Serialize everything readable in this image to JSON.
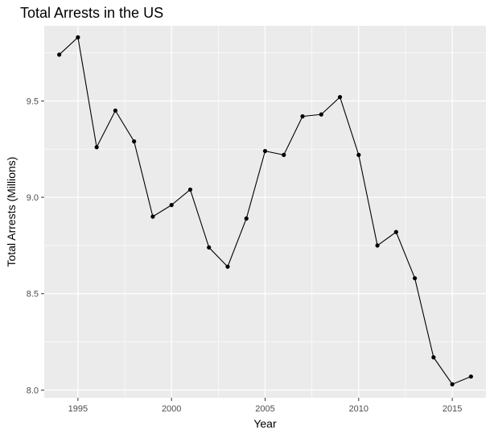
{
  "chart_data": {
    "type": "line",
    "title": "Total Arrests in the US",
    "xlabel": "Year",
    "ylabel": "Total Arrests (Millions)",
    "xlim": [
      1993.2,
      2016.8
    ],
    "ylim": [
      7.96,
      9.89
    ],
    "x_ticks": [
      1995,
      2000,
      2005,
      2010,
      2015
    ],
    "y_ticks": [
      8.0,
      8.5,
      9.0,
      9.5
    ],
    "x_tick_labels": [
      "1995",
      "2000",
      "2005",
      "2010",
      "2015"
    ],
    "y_tick_labels": [
      "8.0",
      "8.5",
      "9.0",
      "9.5"
    ],
    "grid": true,
    "legend": false,
    "series": [
      {
        "x": [
          1994,
          1995,
          1996,
          1997,
          1998,
          1999,
          2000,
          2001,
          2002,
          2003,
          2004,
          2005,
          2006,
          2007,
          2008,
          2009,
          2010,
          2011,
          2012,
          2013,
          2014,
          2015,
          2016
        ],
        "values": [
          9.74,
          9.83,
          9.26,
          9.45,
          9.29,
          8.9,
          8.96,
          9.04,
          8.74,
          8.64,
          8.89,
          9.24,
          9.22,
          9.42,
          9.43,
          9.52,
          9.22,
          8.75,
          8.82,
          8.58,
          8.17,
          8.03,
          8.07
        ]
      }
    ],
    "colors": {
      "panel": "#ebebeb",
      "grid_major": "#ffffff",
      "line": "#000000",
      "point": "#000000",
      "tick_text": "#4d4d4d"
    }
  }
}
